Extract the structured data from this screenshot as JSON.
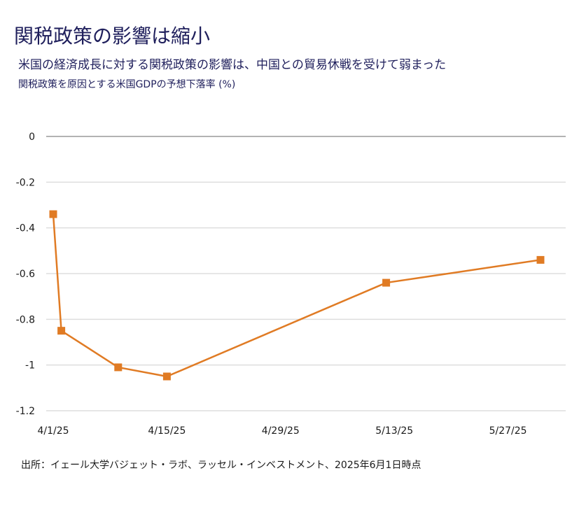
{
  "chart_data": {
    "type": "line",
    "title": "関税政策の影響は縮小",
    "subtitle": "米国の経済成長に対する関税政策の影響は、中国との貿易休戦を受けて弱まった",
    "ylabel": "関税政策を原因とする米国GDPの予想下落率 (%)",
    "source": "出所：イェール大学バジェット・ラボ、ラッセル・インベストメント、2025年6月1日時点",
    "x_ticks": [
      "4/1/25",
      "4/15/25",
      "4/29/25",
      "5/13/25",
      "5/27/25"
    ],
    "y_ticks": [
      "0",
      "-0.2",
      "-0.4",
      "-0.6",
      "-0.8",
      "-1",
      "-1.2"
    ],
    "ylim": [
      -1.2,
      0
    ],
    "xlim": [
      "2025-04-01",
      "2025-05-31"
    ],
    "grid": true,
    "series": [
      {
        "color": "#e07b24",
        "points": [
          {
            "date": "2025-04-01",
            "value": -0.34
          },
          {
            "date": "2025-04-02",
            "value": -0.85
          },
          {
            "date": "2025-04-09",
            "value": -1.01
          },
          {
            "date": "2025-04-15",
            "value": -1.05
          },
          {
            "date": "2025-05-12",
            "value": -0.64
          },
          {
            "date": "2025-05-31",
            "value": -0.54
          }
        ]
      }
    ]
  }
}
